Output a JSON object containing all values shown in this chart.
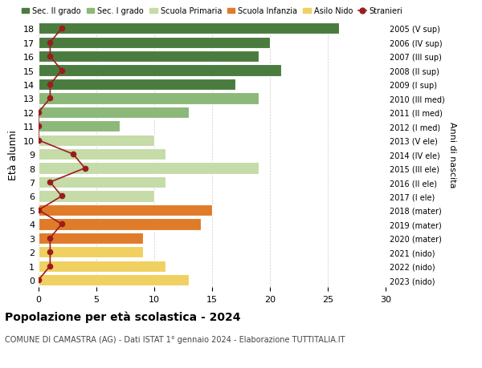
{
  "ages": [
    18,
    17,
    16,
    15,
    14,
    13,
    12,
    11,
    10,
    9,
    8,
    7,
    6,
    5,
    4,
    3,
    2,
    1,
    0
  ],
  "right_labels": [
    "2005 (V sup)",
    "2006 (IV sup)",
    "2007 (III sup)",
    "2008 (II sup)",
    "2009 (I sup)",
    "2010 (III med)",
    "2011 (II med)",
    "2012 (I med)",
    "2013 (V ele)",
    "2014 (IV ele)",
    "2015 (III ele)",
    "2016 (II ele)",
    "2017 (I ele)",
    "2018 (mater)",
    "2019 (mater)",
    "2020 (mater)",
    "2021 (nido)",
    "2022 (nido)",
    "2023 (nido)"
  ],
  "bar_values": [
    26,
    20,
    19,
    21,
    17,
    19,
    13,
    7,
    10,
    11,
    19,
    11,
    10,
    15,
    14,
    9,
    9,
    11,
    13
  ],
  "bar_colors": [
    "#4a7c3f",
    "#4a7c3f",
    "#4a7c3f",
    "#4a7c3f",
    "#4a7c3f",
    "#8cb87a",
    "#8cb87a",
    "#8cb87a",
    "#c5dba8",
    "#c5dba8",
    "#c5dba8",
    "#c5dba8",
    "#c5dba8",
    "#e07b2a",
    "#e07b2a",
    "#e07b2a",
    "#f0d060",
    "#f0d060",
    "#f0d060"
  ],
  "stranieri_values": [
    2,
    1,
    1,
    2,
    1,
    1,
    0,
    0,
    0,
    3,
    4,
    1,
    2,
    0,
    2,
    1,
    1,
    1,
    0
  ],
  "stranieri_color": "#9b1c1c",
  "legend_items": [
    {
      "label": "Sec. II grado",
      "color": "#4a7c3f"
    },
    {
      "label": "Sec. I grado",
      "color": "#8cb87a"
    },
    {
      "label": "Scuola Primaria",
      "color": "#c5dba8"
    },
    {
      "label": "Scuola Infanzia",
      "color": "#e07b2a"
    },
    {
      "label": "Asilo Nido",
      "color": "#f0d060"
    },
    {
      "label": "Stranieri",
      "color": "#9b1c1c"
    }
  ],
  "title": "Popolazione per età scolastica - 2024",
  "subtitle": "COMUNE DI CAMASTRA (AG) - Dati ISTAT 1° gennaio 2024 - Elaborazione TUTTITALIA.IT",
  "ylabel": "Età alunni",
  "right_ylabel": "Anni di nascita",
  "xlim": [
    0,
    30
  ],
  "xticks": [
    0,
    5,
    10,
    15,
    20,
    25,
    30
  ],
  "bg_color": "#ffffff",
  "bar_height": 0.82
}
